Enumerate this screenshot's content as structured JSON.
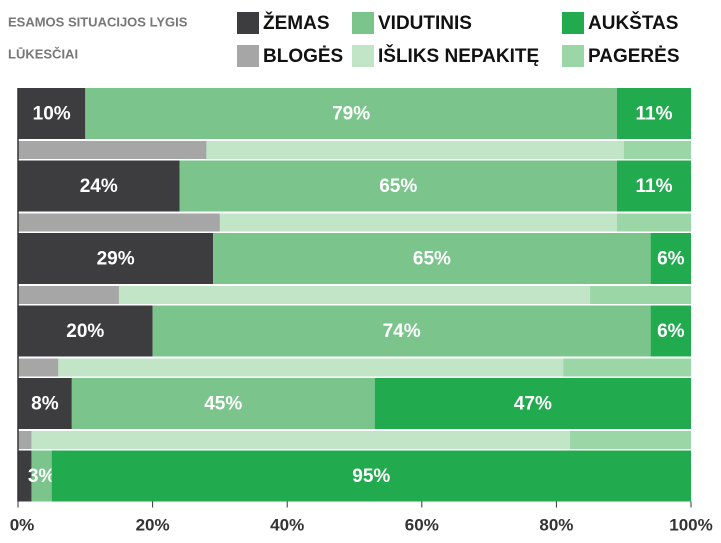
{
  "chart_data": {
    "type": "stacked-bar-horizontal",
    "legend_groups": [
      "ESAMOS SITUACIJOS LYGIS",
      "LŪKESČIAI"
    ],
    "xlim": [
      0,
      100
    ],
    "xticks": [
      {
        "value": 0,
        "label": "0%"
      },
      {
        "value": 20,
        "label": "20%"
      },
      {
        "value": 40,
        "label": "40%"
      },
      {
        "value": 60,
        "label": "60%"
      },
      {
        "value": 80,
        "label": "80%"
      },
      {
        "value": 100,
        "label": "100%"
      }
    ],
    "series": [
      {
        "name": "ŽEMAS",
        "color": "#3d3d40",
        "values": [
          10,
          24,
          29,
          20,
          8,
          2
        ],
        "value_labels": [
          "10%",
          "24%",
          "29%",
          "20%",
          "8%",
          null
        ]
      },
      {
        "name": "VIDUTINIS",
        "color": "#7bc48c",
        "values": [
          79,
          65,
          65,
          74,
          45,
          3
        ],
        "value_labels": [
          "79%",
          "65%",
          "65%",
          "74%",
          "45%",
          "3%"
        ]
      },
      {
        "name": "AUKŠTAS",
        "color": "#22aa4f",
        "values": [
          11,
          11,
          6,
          6,
          47,
          95
        ],
        "value_labels": [
          "11%",
          "11%",
          "6%",
          "6%",
          "47%",
          "95%"
        ]
      }
    ],
    "expectation_series": [
      {
        "name": "BLOGĖS",
        "color": "#a6a6a6",
        "values": [
          28,
          30,
          15,
          6,
          2
        ]
      },
      {
        "name": "IŠLIKS NEPAKITĘ",
        "color": "#c2e5c8",
        "values": [
          62,
          59,
          70,
          75,
          80
        ]
      },
      {
        "name": "PAGERĖS",
        "color": "#9bd6a6",
        "values": [
          10,
          11,
          15,
          19,
          18
        ]
      }
    ]
  }
}
